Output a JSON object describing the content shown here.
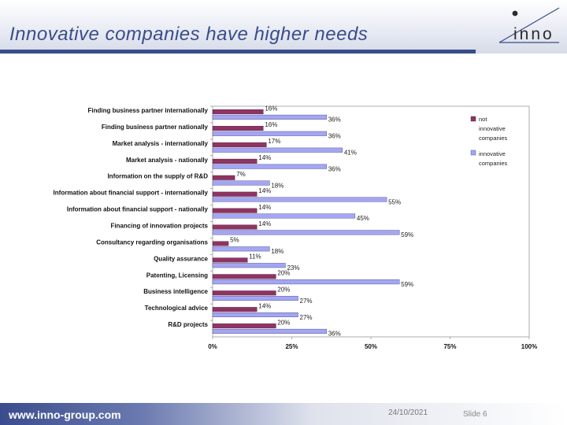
{
  "slide": {
    "title": "Innovative companies have higher needs",
    "logo_text": "inno",
    "footer_url": "www.inno-group.com",
    "date": "24/10/2021",
    "slide_label": "Slide",
    "slide_number": "6"
  },
  "colors": {
    "title": "#3a4c8c",
    "series_not_innovative": "#8e3463",
    "series_innovative": "#a4a6f2"
  },
  "chart_data": {
    "type": "bar",
    "orientation": "horizontal",
    "categories": [
      "Finding business partner internationally",
      "Finding business partner nationally",
      "Market analysis - internationally",
      "Market analysis - nationally",
      "Information on the supply of R&D",
      "Information about financial support - internationally",
      "Information about financial support - nationally",
      "Financing of innovation projects",
      "Consultancy regarding organisations",
      "Quality assurance",
      "Patenting, Licensing",
      "Business intelligence",
      "Technological advice",
      "R&D projects"
    ],
    "series": [
      {
        "name": "not innovative companies",
        "legend_lines": [
          "not",
          "innovative",
          "companies"
        ],
        "values": [
          16,
          16,
          17,
          14,
          7,
          14,
          14,
          14,
          5,
          11,
          20,
          20,
          14,
          20
        ]
      },
      {
        "name": "innovative companies",
        "legend_lines": [
          "innovative",
          "companies"
        ],
        "values": [
          36,
          36,
          41,
          36,
          18,
          55,
          45,
          59,
          18,
          23,
          59,
          27,
          27,
          36
        ]
      }
    ],
    "xlim": [
      0,
      100
    ],
    "xticks": [
      0,
      25,
      50,
      75,
      100
    ],
    "xtick_labels": [
      "0%",
      "25%",
      "50%",
      "75%",
      "100%"
    ],
    "value_suffix": "%",
    "legend_position": "right"
  }
}
